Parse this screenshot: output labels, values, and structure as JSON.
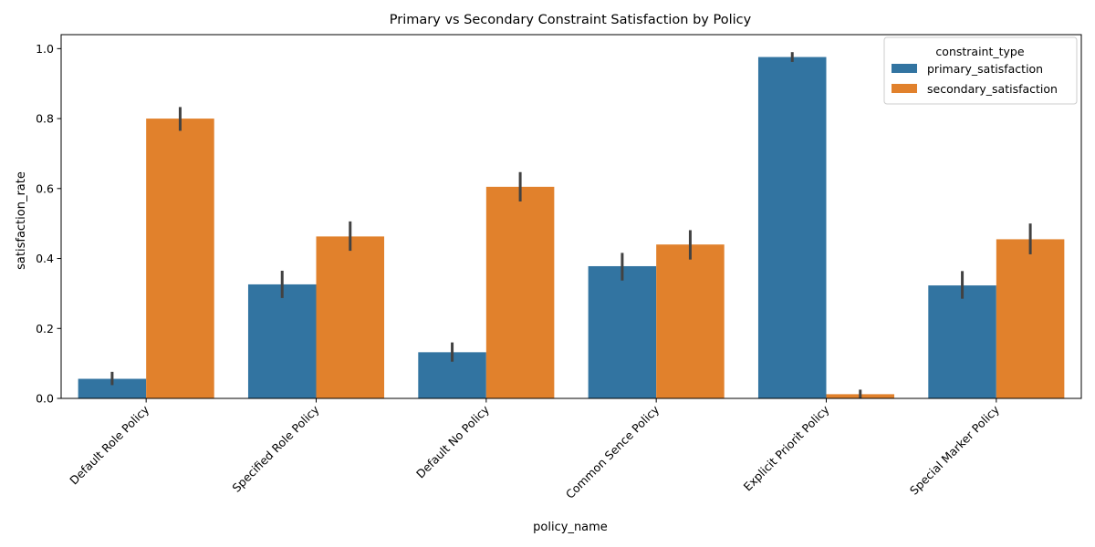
{
  "chart_data": {
    "type": "bar",
    "title": "Primary vs Secondary Constraint Satisfaction by Policy",
    "xlabel": "policy_name",
    "ylabel": "satisfaction_rate",
    "ylim": [
      0,
      1.04
    ],
    "yticks": [
      "0.0",
      "0.2",
      "0.4",
      "0.6",
      "0.8",
      "1.0"
    ],
    "ytick_values": [
      0,
      0.2,
      0.4,
      0.6,
      0.8,
      1.0
    ],
    "grid": false,
    "categories": [
      "Default Role Policy",
      "Specified Role Policy",
      "Default No Policy",
      "Common Sence Policy",
      "Explicit Priorit Policy",
      "Special Marker Policy"
    ],
    "legend": {
      "title": "constraint_type",
      "position": "top-right"
    },
    "series": [
      {
        "name": "primary_satisfaction",
        "color": "#3274a1",
        "values": [
          0.056,
          0.326,
          0.132,
          0.378,
          0.976,
          0.323
        ],
        "err_low": [
          0.038,
          0.287,
          0.105,
          0.337,
          0.962,
          0.285
        ],
        "err_high": [
          0.076,
          0.365,
          0.16,
          0.416,
          0.99,
          0.364
        ]
      },
      {
        "name": "secondary_satisfaction",
        "color": "#e1812c",
        "values": [
          0.8,
          0.463,
          0.605,
          0.44,
          0.012,
          0.455
        ],
        "err_low": [
          0.765,
          0.422,
          0.563,
          0.397,
          0.0,
          0.412
        ],
        "err_high": [
          0.833,
          0.506,
          0.647,
          0.481,
          0.025,
          0.5
        ]
      }
    ]
  }
}
